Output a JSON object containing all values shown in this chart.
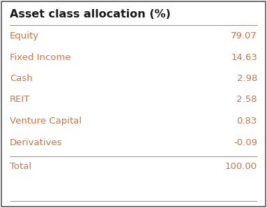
{
  "title": "Asset class allocation (%)",
  "rows": [
    {
      "label": "Equity",
      "value": "79.07"
    },
    {
      "label": "Fixed Income",
      "value": "14.63"
    },
    {
      "label": "Cash",
      "value": "2.98"
    },
    {
      "label": "REIT",
      "value": "2.58"
    },
    {
      "label": "Venture Capital",
      "value": "0.83"
    },
    {
      "label": "Derivatives",
      "value": "-0.09"
    },
    {
      "label": "Total",
      "value": "100.00"
    }
  ],
  "label_color": "#c8784a",
  "value_color": "#c8784a",
  "title_color": "#1a1a1a",
  "bg_color": "#ffffff",
  "border_color": "#555555",
  "line_color": "#999999",
  "title_fontsize": 11.5,
  "row_fontsize": 9.5
}
